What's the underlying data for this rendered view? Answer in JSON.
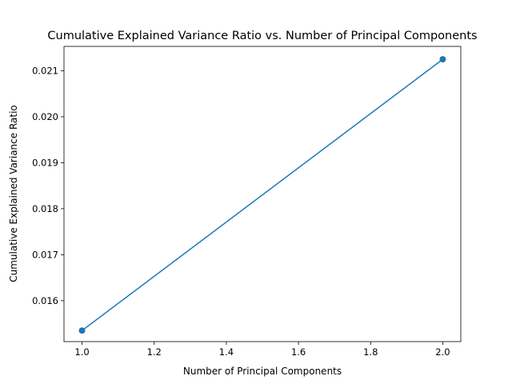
{
  "chart_data": {
    "type": "line",
    "title": "Cumulative Explained Variance Ratio vs. Number of Principal Components",
    "xlabel": "Number of Principal Components",
    "ylabel": "Cumulative Explained Variance Ratio",
    "xlim": [
      0.95,
      2.05
    ],
    "ylim": [
      0.01511,
      0.02153
    ],
    "x_ticks": [
      1.0,
      1.2,
      1.4,
      1.6,
      1.8,
      2.0
    ],
    "x_tick_labels": [
      "1.0",
      "1.2",
      "1.4",
      "1.6",
      "1.8",
      "2.0"
    ],
    "y_ticks": [
      0.016,
      0.017,
      0.018,
      0.019,
      0.02,
      0.021
    ],
    "y_tick_labels": [
      "0.016",
      "0.017",
      "0.018",
      "0.019",
      "0.020",
      "0.021"
    ],
    "grid": false,
    "series": [
      {
        "x": [
          1,
          2
        ],
        "values": [
          0.01535,
          0.02125
        ],
        "color": "#1f77b4",
        "marker": "circle"
      }
    ]
  }
}
